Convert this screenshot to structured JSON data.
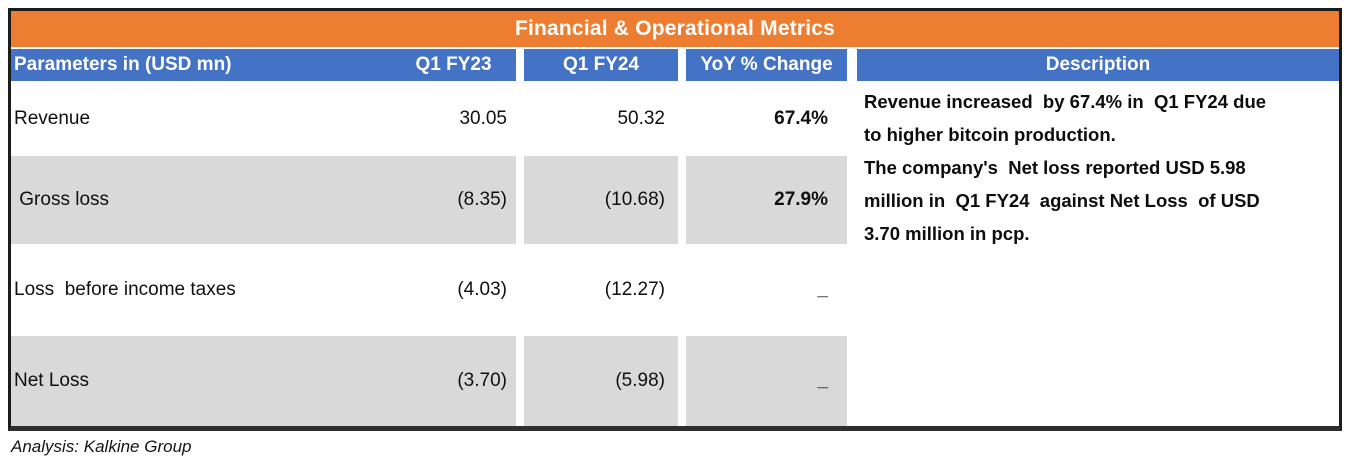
{
  "title": "Financial & Operational Metrics",
  "table": {
    "headers": {
      "param": "Parameters in (USD mn)",
      "fy23": "Q1 FY23",
      "fy24": "Q1 FY24",
      "yoy": "YoY % Change",
      "description": "Description"
    },
    "rows": [
      {
        "param": "Revenue",
        "fy23": "30.05",
        "fy24": "50.32",
        "yoy": "67.4%"
      },
      {
        "param": " Gross loss",
        "fy23": "(8.35)",
        "fy24": "(10.68)",
        "yoy": "27.9%"
      },
      {
        "param": "Loss  before income taxes",
        "fy23": "(4.03)",
        "fy24": "(12.27)",
        "yoy": "_"
      },
      {
        "param": "Net Loss",
        "fy23": "(3.70)",
        "fy24": "(5.98)",
        "yoy": "_"
      }
    ],
    "description_lines": [
      "Revenue increased  by 67.4% in  Q1 FY24 due",
      "to higher bitcoin production.",
      "The company's  Net loss reported USD 5.98",
      "million in  Q1 FY24  against Net Loss  of USD",
      "3.70 million in pcp."
    ]
  },
  "footer": "Analysis: Kalkine Group",
  "colors": {
    "title_bg": "#ED7D31",
    "header_bg": "#4472C4",
    "row_shade": "#D9D9D9",
    "header_text": "#FFFFFF",
    "body_text": "#101010",
    "border": "#1C1C1C"
  }
}
